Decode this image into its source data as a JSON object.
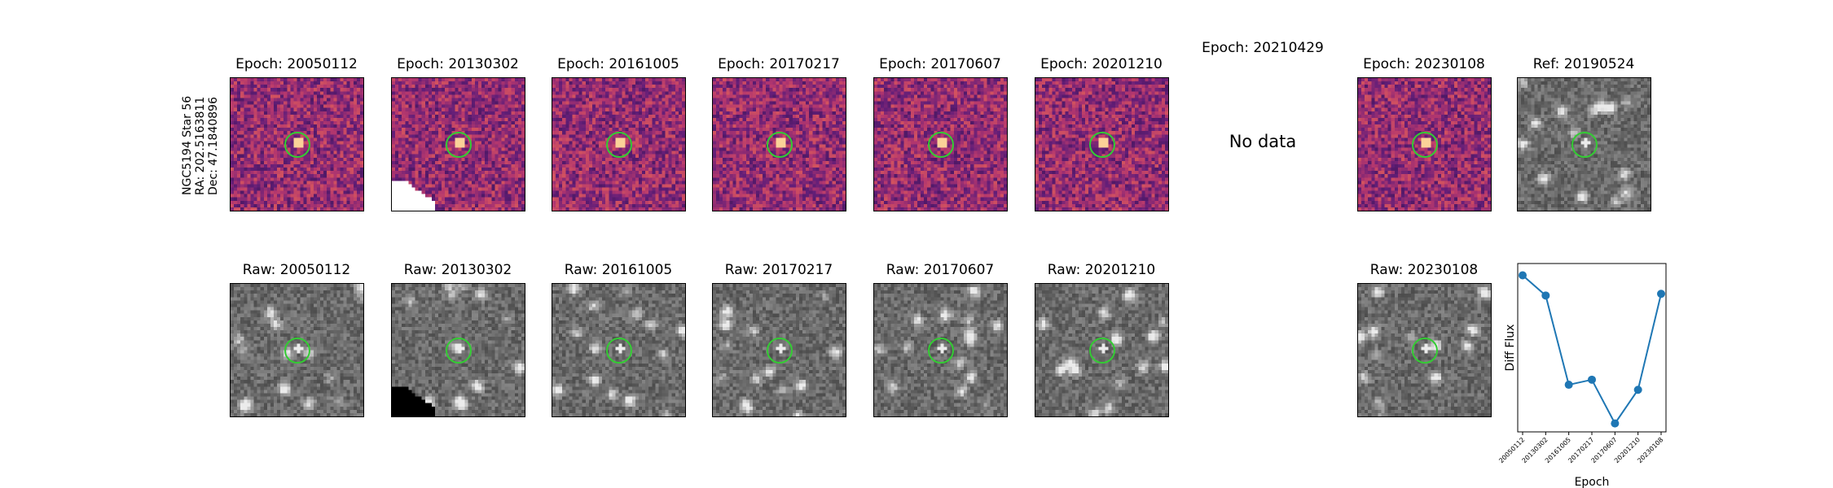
{
  "star": {
    "name": "NGC5194 Star 56",
    "ra": "RA: 202.5163811",
    "dec": "Dec: 47.1840896"
  },
  "diff_panels": [
    {
      "title": "Epoch: 20050112",
      "kind": "diff",
      "seed": 11,
      "has_data": true
    },
    {
      "title": "Epoch: 20130302",
      "kind": "diff",
      "seed": 23,
      "has_data": true,
      "mask": "bottom-left"
    },
    {
      "title": "Epoch: 20161005",
      "kind": "diff",
      "seed": 37,
      "has_data": true
    },
    {
      "title": "Epoch: 20170217",
      "kind": "diff",
      "seed": 41,
      "has_data": true
    },
    {
      "title": "Epoch: 20170607",
      "kind": "diff",
      "seed": 53,
      "has_data": true
    },
    {
      "title": "Epoch: 20201210",
      "kind": "diff",
      "seed": 67,
      "has_data": true
    },
    {
      "title": "Epoch: 20210429",
      "kind": "diff",
      "seed": 71,
      "has_data": false,
      "message": "No data"
    },
    {
      "title": "Epoch: 20230108",
      "kind": "diff",
      "seed": 83,
      "has_data": true
    },
    {
      "title": "Ref: 20190524",
      "kind": "raw",
      "seed": 97,
      "has_data": true
    }
  ],
  "raw_panels": [
    {
      "title": "Raw: 20050112",
      "kind": "raw",
      "seed": 13
    },
    {
      "title": "Raw: 20130302",
      "kind": "raw",
      "seed": 29,
      "mask": "bottom-left"
    },
    {
      "title": "Raw: 20161005",
      "kind": "raw",
      "seed": 31
    },
    {
      "title": "Raw: 20170217",
      "kind": "raw",
      "seed": 43
    },
    {
      "title": "Raw: 20170607",
      "kind": "raw",
      "seed": 59
    },
    {
      "title": "Raw: 20201210",
      "kind": "raw",
      "seed": 61
    },
    {
      "title": "Raw: 20230108",
      "kind": "raw",
      "seed": 89
    }
  ],
  "chart_data": {
    "type": "line",
    "title": "",
    "xlabel": "Epoch",
    "ylabel": "Diff Flux",
    "categories": [
      "20050112",
      "20130302",
      "20161005",
      "20170217",
      "20170607",
      "20201210",
      "20230108"
    ],
    "values": [
      0.93,
      0.81,
      0.28,
      0.31,
      0.05,
      0.25,
      0.82
    ],
    "ylim": [
      0,
      1
    ],
    "color": "#1f77b4",
    "grid": false
  },
  "colors": {
    "circle": "#33cc33",
    "series": "#1f77b4"
  }
}
